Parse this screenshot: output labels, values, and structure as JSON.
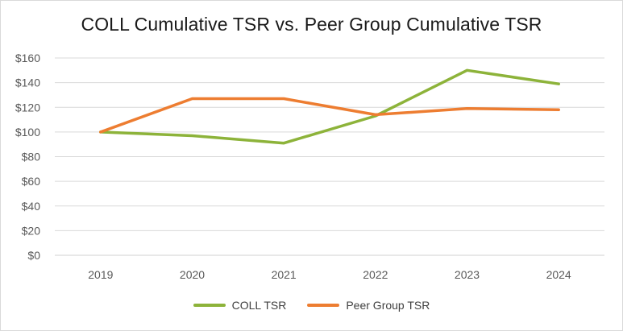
{
  "chart_data": {
    "type": "line",
    "title": "COLL Cumulative TSR vs. Peer Group Cumulative TSR",
    "categories": [
      "2019",
      "2020",
      "2021",
      "2022",
      "2023",
      "2024"
    ],
    "series": [
      {
        "name": "COLL TSR",
        "color": "#8DB33A",
        "values": [
          100,
          97,
          91,
          113,
          150,
          139
        ]
      },
      {
        "name": "Peer Group TSR",
        "color": "#ED7D31",
        "values": [
          100,
          127,
          127,
          114,
          119,
          118
        ]
      }
    ],
    "ylim": [
      0,
      160
    ],
    "yticks": [
      0,
      20,
      40,
      60,
      80,
      100,
      120,
      140,
      160
    ],
    "ytick_labels": [
      "$0",
      "$20",
      "$40",
      "$60",
      "$80",
      "$100",
      "$120",
      "$140",
      "$160"
    ],
    "grid": true,
    "legend": "bottom"
  }
}
